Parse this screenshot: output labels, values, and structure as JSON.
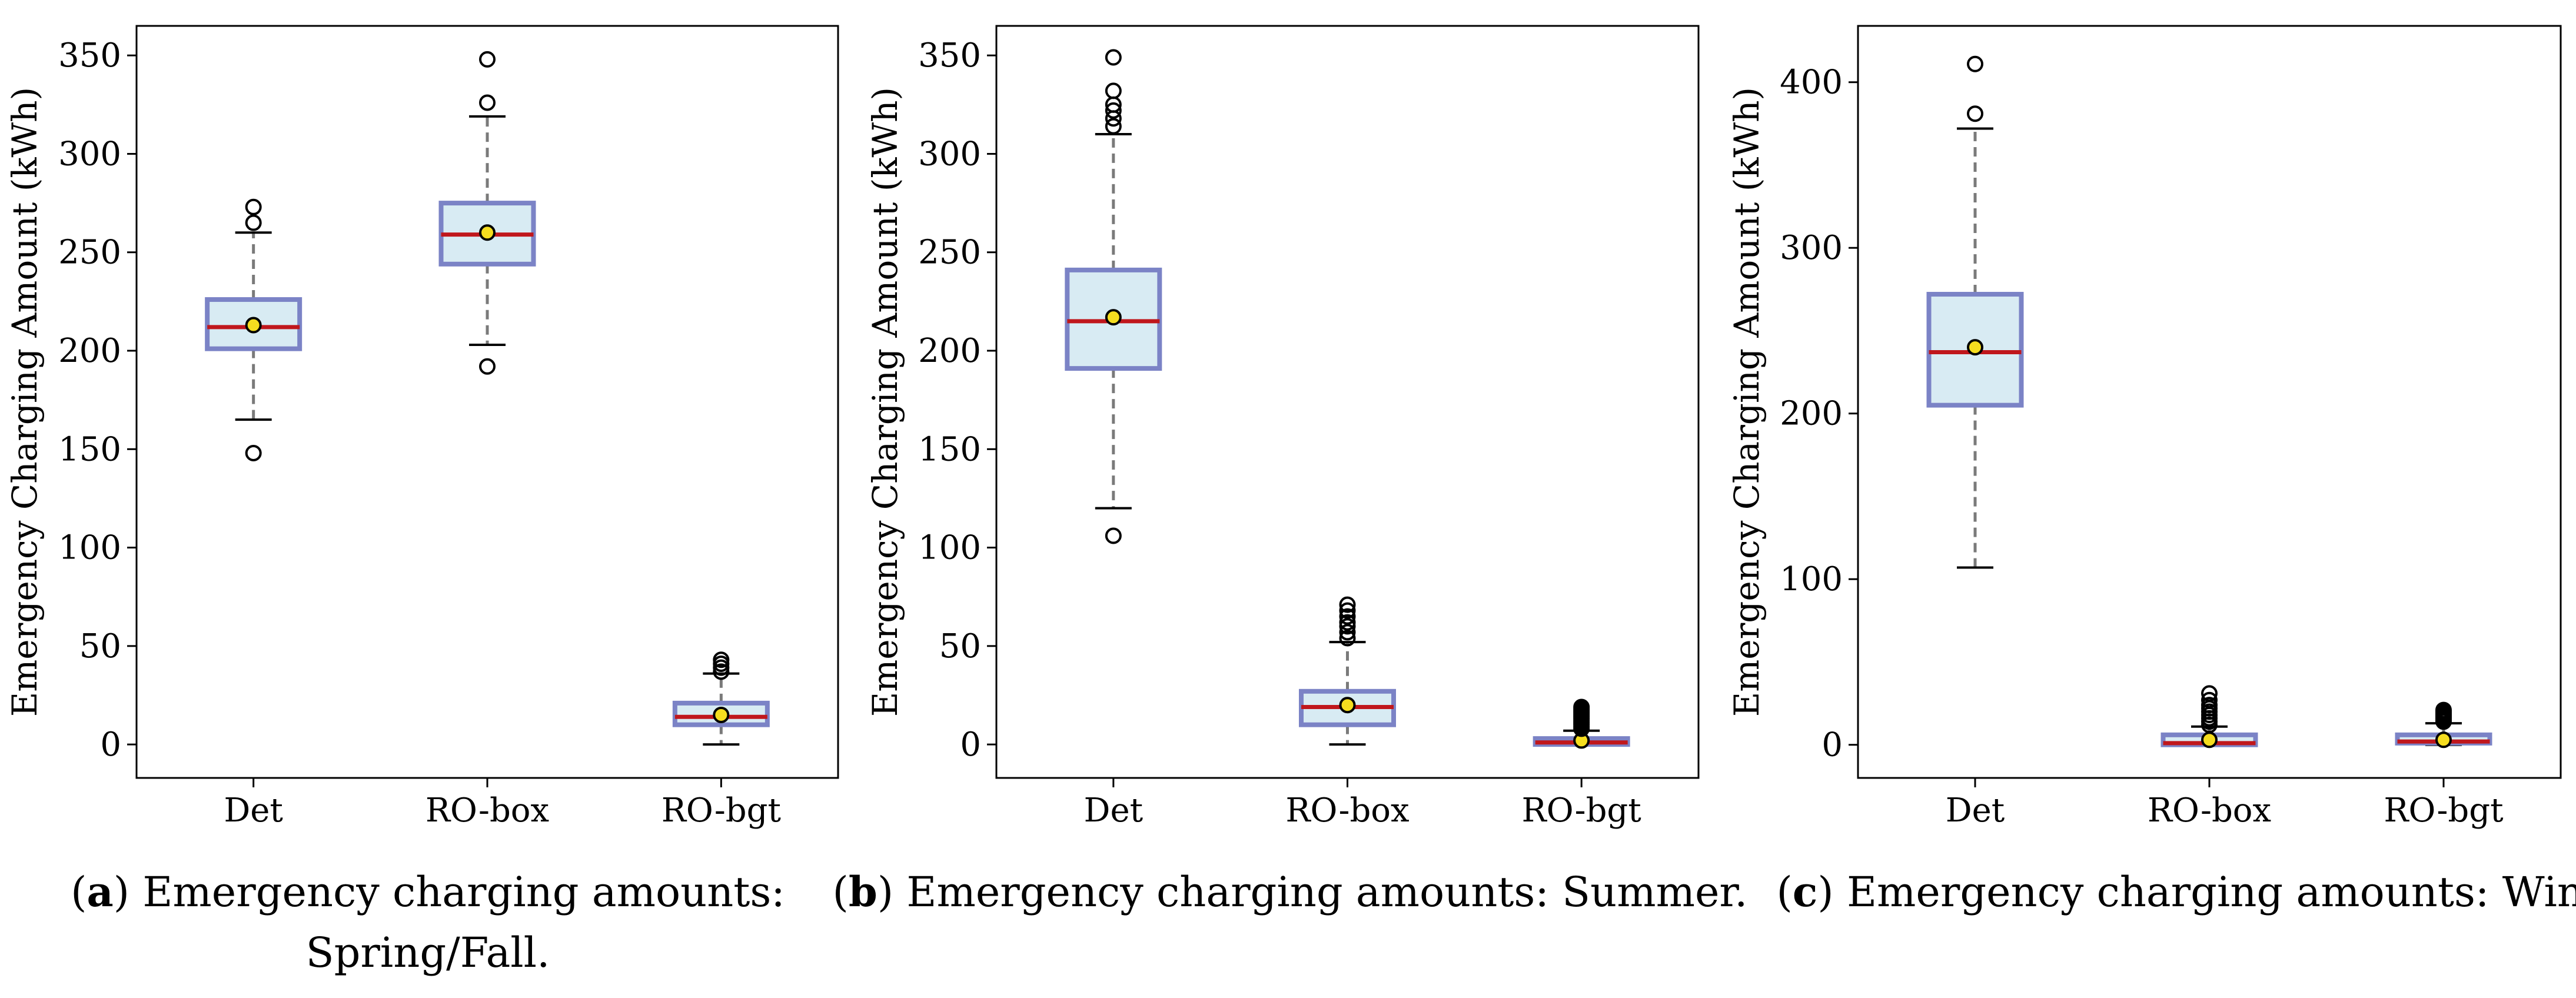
{
  "chart_data": [
    {
      "type": "box",
      "panel": "a",
      "ylabel": "Emergency Charging Amount (kWh)",
      "ylim": [
        -17,
        365
      ],
      "yticks": [
        0,
        50,
        100,
        150,
        200,
        250,
        300,
        350
      ],
      "categories": [
        "Det",
        "RO-box",
        "RO-bgt"
      ],
      "boxes": [
        {
          "whisker_low": 165,
          "q1": 201,
          "median": 212,
          "q3": 226,
          "whisker_high": 260,
          "mean": 213,
          "outliers": [
            148,
            265,
            273
          ]
        },
        {
          "whisker_low": 203,
          "q1": 244,
          "median": 259,
          "q3": 275,
          "whisker_high": 319,
          "mean": 260,
          "outliers": [
            192,
            326,
            348
          ]
        },
        {
          "whisker_low": 0,
          "q1": 10,
          "median": 14,
          "q3": 21,
          "whisker_high": 36,
          "mean": 15,
          "outliers": [
            37,
            39,
            41,
            43
          ]
        }
      ],
      "caption_letter": "a",
      "caption_line1": ") Emergency charging amounts:",
      "caption_line2": "Spring/Fall."
    },
    {
      "type": "box",
      "panel": "b",
      "ylabel": "Emergency Charging Amount (kWh)",
      "ylim": [
        -17,
        365
      ],
      "yticks": [
        0,
        50,
        100,
        150,
        200,
        250,
        300,
        350
      ],
      "categories": [
        "Det",
        "RO-box",
        "RO-bgt"
      ],
      "boxes": [
        {
          "whisker_low": 120,
          "q1": 191,
          "median": 215,
          "q3": 241,
          "whisker_high": 310,
          "mean": 217,
          "outliers": [
            106,
            314,
            318,
            322,
            325,
            332,
            349
          ]
        },
        {
          "whisker_low": 0,
          "q1": 10,
          "median": 19,
          "q3": 27,
          "whisker_high": 52,
          "mean": 20,
          "outliers": [
            54,
            57,
            60,
            62,
            65,
            68,
            71
          ]
        },
        {
          "whisker_low": 0,
          "q1": 0,
          "median": 1,
          "q3": 3,
          "whisker_high": 7,
          "mean": 2,
          "outliers": [
            8,
            9,
            10,
            11,
            12,
            13,
            14,
            15,
            16,
            17,
            18,
            19
          ]
        }
      ],
      "caption_letter": "b",
      "caption_line1": ") Emergency charging amounts: Summer."
    },
    {
      "type": "box",
      "panel": "c",
      "ylabel": "Emergency Charging Amount (kWh)",
      "ylim": [
        -20,
        434
      ],
      "yticks": [
        0,
        100,
        200,
        300,
        400
      ],
      "categories": [
        "Det",
        "RO-box",
        "RO-bgt"
      ],
      "boxes": [
        {
          "whisker_low": 107,
          "q1": 205,
          "median": 237,
          "q3": 272,
          "whisker_high": 372,
          "mean": 240,
          "outliers": [
            381,
            411
          ]
        },
        {
          "whisker_low": 0,
          "q1": 0,
          "median": 1,
          "q3": 6,
          "whisker_high": 11,
          "mean": 3,
          "outliers": [
            12,
            14,
            16,
            18,
            20,
            22,
            24,
            27,
            31
          ]
        },
        {
          "whisker_low": 0,
          "q1": 1,
          "median": 2,
          "q3": 6,
          "whisker_high": 13,
          "mean": 3,
          "outliers": [
            14,
            15,
            16,
            17,
            18,
            19,
            20,
            21
          ]
        }
      ],
      "caption_letter": "c",
      "caption_line1": ") Emergency charging amounts: Winter."
    }
  ],
  "colors": {
    "box_fill": "#d8ebf3",
    "box_edge": "#7b83c6",
    "median": "#c0171c",
    "whisker": "#7a7a7a",
    "mean_fill": "#f5dd1f",
    "axis": "#000000"
  }
}
